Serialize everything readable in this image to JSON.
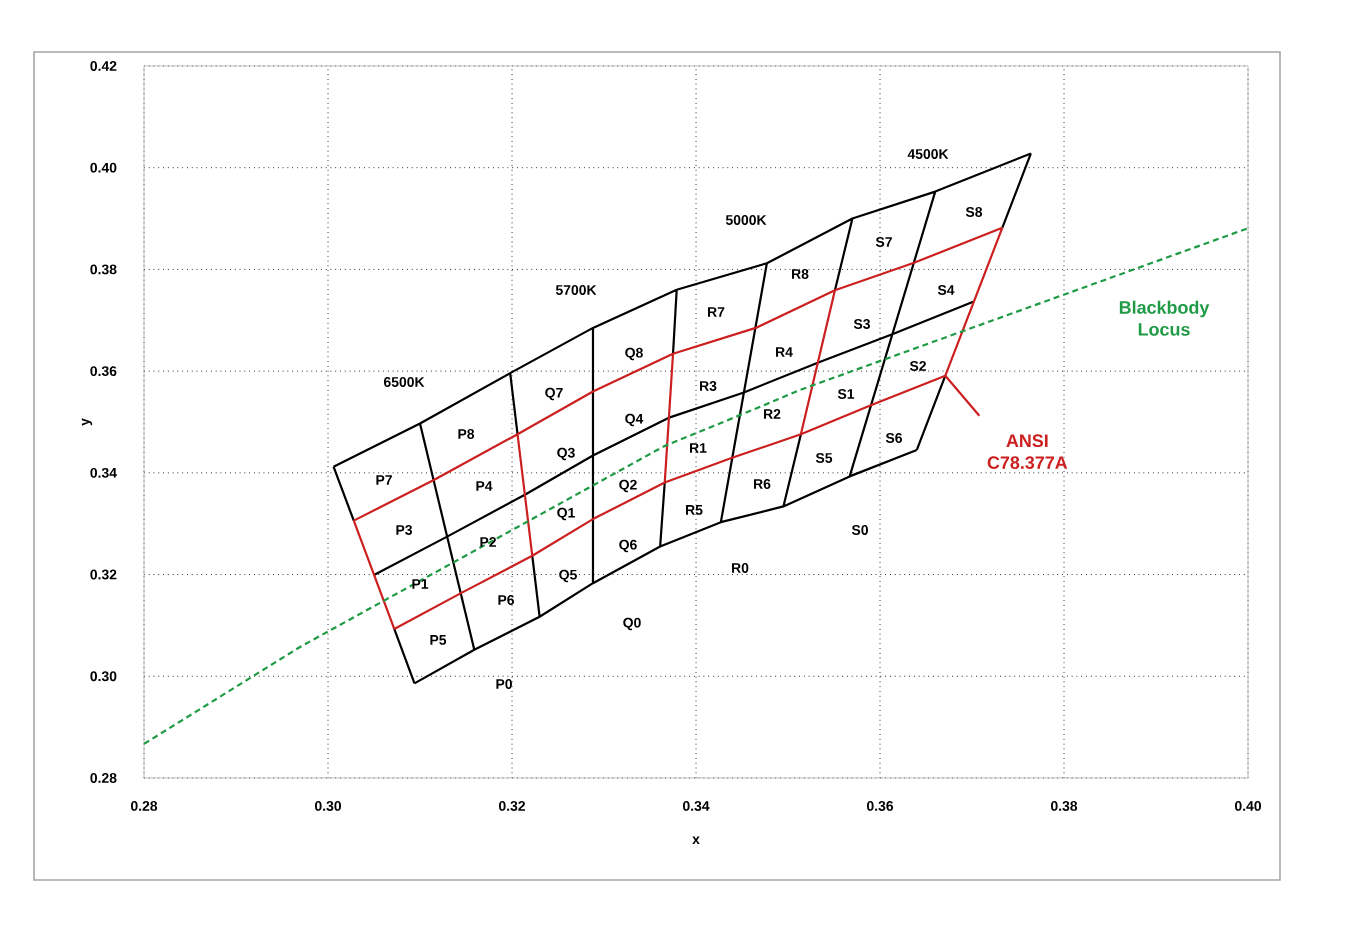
{
  "chart_data": {
    "type": "line",
    "xlabel": "x",
    "ylabel": "y",
    "xlim": [
      0.28,
      0.4
    ],
    "ylim": [
      0.28,
      0.42
    ],
    "xticks": [
      0.28,
      {
        "value": 0.3,
        "label": "0.30"
      },
      0.32,
      0.34,
      0.36,
      0.38,
      {
        "value": 0.4,
        "label": "0.40"
      }
    ],
    "yticks": [
      0.28,
      {
        "value": 0.3,
        "label": "0.30"
      },
      0.32,
      0.34,
      0.36,
      0.38,
      {
        "value": 0.4,
        "label": "0.40"
      },
      0.42
    ],
    "grid": true,
    "marker": "none",
    "series": [
      {
        "color": "#000000",
        "line_style": "solid",
        "x": [
          0.3006,
          0.31,
          0.3198,
          0.3288,
          0.3379,
          0.3477,
          0.357,
          0.366,
          0.3764,
          null,
          0.305,
          0.313,
          0.3214,
          0.3288,
          0.337,
          0.3452,
          0.3533,
          0.3614,
          0.3702,
          null,
          0.3094,
          0.3159,
          0.323,
          0.3288,
          0.3361,
          0.3427,
          0.3495,
          0.3567,
          0.364,
          null,
          0.31,
          0.3159,
          null,
          0.3288,
          0.3288,
          null,
          0.3477,
          0.3427,
          null,
          0.366,
          0.3567,
          null,
          0.3006,
          0.3028,
          null,
          0.3072,
          0.3094,
          null,
          0.3198,
          0.3206,
          null,
          0.3222,
          0.323,
          null,
          0.3379,
          0.3375,
          null,
          0.3366,
          0.3361,
          null,
          0.357,
          0.3551,
          null,
          0.3514,
          0.3495,
          null,
          0.3764,
          0.3733,
          null,
          0.3671,
          0.364
        ],
        "values": [
          0.3412,
          0.3497,
          0.3596,
          0.3685,
          0.376,
          0.3812,
          0.39,
          0.3953,
          0.4028,
          null,
          0.3199,
          0.3275,
          0.3357,
          0.3434,
          0.3508,
          0.3558,
          0.3617,
          0.3673,
          0.3737,
          null,
          0.2986,
          0.3052,
          0.3117,
          0.3183,
          0.3255,
          0.3303,
          0.3334,
          0.3393,
          0.3445,
          null,
          0.3497,
          0.3052,
          null,
          0.3685,
          0.3183,
          null,
          0.3812,
          0.3303,
          null,
          0.3953,
          0.3393,
          null,
          0.3412,
          0.3306,
          null,
          0.3093,
          0.2986,
          null,
          0.3596,
          0.3476,
          null,
          0.3237,
          0.3117,
          null,
          0.376,
          0.3634,
          null,
          0.3381,
          0.3255,
          null,
          0.39,
          0.3759,
          null,
          0.3476,
          0.3334,
          null,
          0.4028,
          0.3882,
          null,
          0.3591,
          0.3445
        ]
      },
      {
        "name": "ANSI C78.377A",
        "color": "#cc1f1f",
        "line_style": "solid",
        "x": [
          0.3028,
          0.3115,
          0.3206,
          0.3288,
          0.3375,
          0.3465,
          0.3551,
          0.3637,
          0.3733,
          null,
          0.3028,
          0.3072,
          null,
          0.3206,
          0.3222,
          null,
          0.3375,
          0.3366,
          null,
          0.3551,
          0.3514,
          null,
          0.3733,
          0.3671,
          null,
          0.3072,
          0.3144,
          0.3222,
          0.3288,
          0.3366,
          0.344,
          0.3514,
          0.359,
          0.3671
        ],
        "values": [
          0.3306,
          0.3386,
          0.3476,
          0.356,
          0.3634,
          0.3685,
          0.3759,
          0.3813,
          0.3882,
          null,
          0.3306,
          0.3093,
          null,
          0.3476,
          0.3237,
          null,
          0.3634,
          0.3381,
          null,
          0.3759,
          0.3476,
          null,
          0.3882,
          0.3591,
          null,
          0.3093,
          0.3163,
          0.3237,
          0.3309,
          0.3381,
          0.343,
          0.3476,
          0.3533,
          0.3591
        ]
      },
      {
        "name": "Blackbody Locus",
        "color": "#1f9a45",
        "line_style": "dashed",
        "x": [
          0.28,
          0.297,
          0.3365,
          0.347,
          0.3513,
          0.4
        ],
        "values": [
          0.2867,
          0.3058,
          0.3452,
          0.353,
          0.3563,
          0.3881
        ]
      }
    ],
    "annotations": [
      "6500K",
      "5700K",
      "5000K",
      "4500K",
      "P7",
      "P8",
      "P3",
      "P4",
      "P1",
      "P2",
      "P5",
      "P6",
      "P0",
      "Q7",
      "Q8",
      "Q3",
      "Q4",
      "Q1",
      "Q2",
      "Q5",
      "Q6",
      "Q0",
      "R7",
      "R8",
      "R3",
      "R4",
      "R1",
      "R2",
      "R5",
      "R6",
      "R0",
      "S7",
      "S8",
      "S3",
      "S4",
      "S1",
      "S2",
      "S5",
      "S6",
      "S0"
    ]
  }
}
